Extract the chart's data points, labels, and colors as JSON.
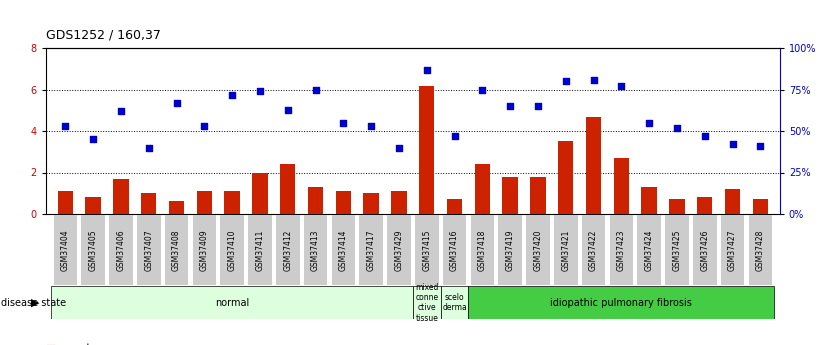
{
  "title": "GDS1252 / 160,37",
  "samples": [
    "GSM37404",
    "GSM37405",
    "GSM37406",
    "GSM37407",
    "GSM37408",
    "GSM37409",
    "GSM37410",
    "GSM37411",
    "GSM37412",
    "GSM37413",
    "GSM37414",
    "GSM37417",
    "GSM37429",
    "GSM37415",
    "GSM37416",
    "GSM37418",
    "GSM37419",
    "GSM37420",
    "GSM37421",
    "GSM37422",
    "GSM37423",
    "GSM37424",
    "GSM37425",
    "GSM37426",
    "GSM37427",
    "GSM37428"
  ],
  "counts": [
    1.1,
    0.8,
    1.7,
    1.0,
    0.6,
    1.1,
    1.1,
    2.0,
    2.4,
    1.3,
    1.1,
    1.0,
    1.1,
    6.2,
    0.7,
    2.4,
    1.8,
    1.8,
    3.5,
    4.7,
    2.7,
    1.3,
    0.7,
    0.8,
    1.2,
    0.7
  ],
  "percentiles": [
    53,
    45,
    62,
    40,
    67,
    53,
    72,
    74,
    63,
    75,
    55,
    53,
    40,
    87,
    47,
    75,
    65,
    65,
    80,
    81,
    77,
    55,
    52,
    47,
    42,
    41
  ],
  "ylim_left": [
    0,
    8
  ],
  "ylim_right": [
    0,
    100
  ],
  "yticks_left": [
    0,
    2,
    4,
    6,
    8
  ],
  "yticks_right": [
    0,
    25,
    50,
    75,
    100
  ],
  "bar_color": "#cc2200",
  "scatter_color": "#0000cc",
  "grid_color": "#000000",
  "bg_color": "#ffffff",
  "xticklabel_bg": "#cccccc",
  "left_tick_color": "#cc0000",
  "group_configs": [
    {
      "label": "normal",
      "start": 0,
      "end": 13,
      "color": "#ddffdd"
    },
    {
      "label": "mixed\nconne\nctive\ntissue",
      "start": 13,
      "end": 14,
      "color": "#ddffdd"
    },
    {
      "label": "scelo\nderma",
      "start": 14,
      "end": 15,
      "color": "#ddffdd"
    },
    {
      "label": "idiopathic pulmonary fibrosis",
      "start": 15,
      "end": 26,
      "color": "#44cc44"
    }
  ]
}
